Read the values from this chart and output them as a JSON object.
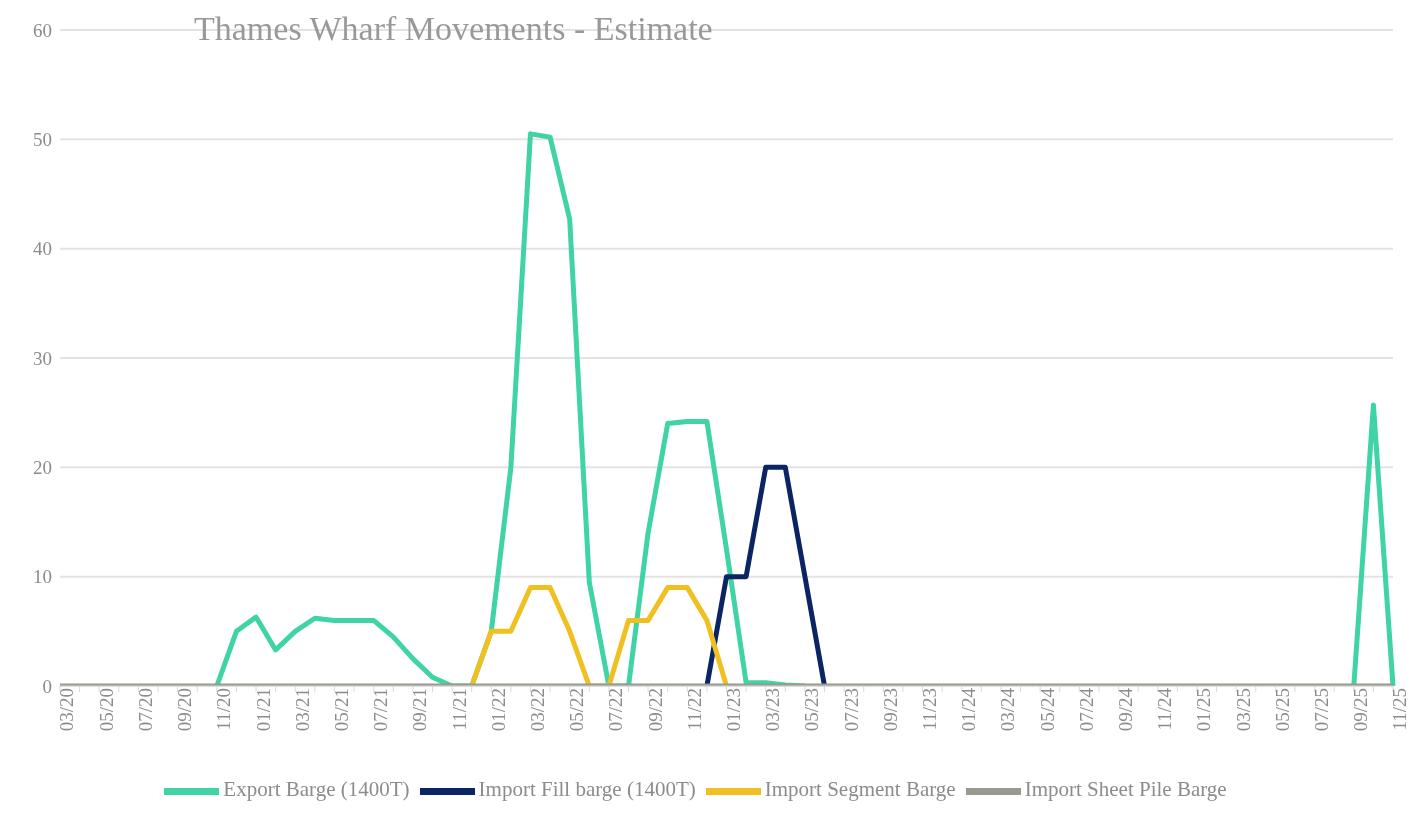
{
  "chart_data": {
    "type": "line",
    "title": "Thames Wharf Movements - Estimate",
    "categories": [
      "03/20",
      null,
      "05/20",
      null,
      "07/20",
      null,
      "09/20",
      null,
      "11/20",
      null,
      "01/21",
      null,
      "03/21",
      null,
      "05/21",
      null,
      "07/21",
      null,
      "09/21",
      null,
      "11/21",
      null,
      "01/22",
      null,
      "03/22",
      null,
      "05/22",
      null,
      "07/22",
      null,
      "09/22",
      null,
      "11/22",
      null,
      "01/23",
      null,
      "03/23",
      null,
      "05/23",
      null,
      "07/23",
      null,
      "09/23",
      null,
      "11/23",
      null,
      "01/24",
      null,
      "03/24",
      null,
      "05/24",
      null,
      "07/24",
      null,
      "09/24",
      null,
      "11/24",
      null,
      "01/25",
      null,
      "03/25",
      null,
      "05/25",
      null,
      "07/25",
      null,
      "09/25",
      null,
      "11/25"
    ],
    "series": [
      {
        "name": "Export Barge (1400T)",
        "color": "#3fd3a5",
        "values": [
          null,
          null,
          null,
          null,
          null,
          null,
          null,
          null,
          0,
          5,
          6.3,
          3.3,
          5,
          6.2,
          6,
          6,
          6,
          4.5,
          2.5,
          0.8,
          0,
          0,
          5,
          20,
          50.5,
          50.2,
          42.7,
          9.5,
          0,
          0,
          14,
          24,
          24.2,
          24.2,
          12.5,
          0.3,
          0.3,
          0.1,
          0,
          null,
          null,
          null,
          null,
          null,
          null,
          null,
          null,
          null,
          null,
          null,
          null,
          null,
          null,
          null,
          null,
          null,
          null,
          null,
          null,
          null,
          null,
          null,
          null,
          null,
          null,
          null,
          0,
          25.7,
          0
        ]
      },
      {
        "name": "Import Fill barge (1400T)",
        "color": "#0a2464",
        "values": [
          null,
          null,
          null,
          null,
          null,
          null,
          null,
          null,
          null,
          null,
          null,
          null,
          null,
          null,
          null,
          null,
          null,
          null,
          null,
          null,
          null,
          null,
          null,
          null,
          null,
          null,
          null,
          null,
          null,
          null,
          null,
          null,
          null,
          0,
          10,
          10,
          20,
          20,
          10,
          0,
          null,
          null,
          null,
          null,
          null,
          null,
          null,
          null,
          null,
          null,
          null,
          null,
          null,
          null,
          null,
          null,
          null,
          null,
          null,
          null,
          null,
          null,
          null,
          null,
          null,
          null,
          null,
          null,
          null
        ]
      },
      {
        "name": "Import Segment Barge",
        "color": "#f0c020",
        "values": [
          null,
          null,
          null,
          null,
          null,
          null,
          null,
          null,
          null,
          null,
          null,
          null,
          null,
          null,
          null,
          null,
          null,
          null,
          null,
          null,
          null,
          0,
          5,
          5,
          9,
          9,
          5,
          0,
          0,
          6,
          6,
          9,
          9,
          6,
          0,
          null,
          null,
          null,
          null,
          null,
          null,
          null,
          null,
          null,
          null,
          null,
          null,
          null,
          null,
          null,
          null,
          null,
          null,
          null,
          null,
          null,
          null,
          null,
          null,
          null,
          null,
          null,
          null,
          null,
          null,
          null,
          null,
          null,
          null
        ]
      },
      {
        "name": "Import Sheet Pile Barge",
        "color": "#979a8e",
        "values": [
          0,
          0,
          0,
          0,
          0,
          0,
          0,
          0,
          0,
          0,
          0,
          0,
          0,
          0,
          0,
          0,
          0,
          0,
          0,
          0,
          0,
          0,
          0,
          0,
          0,
          0,
          0,
          0,
          0,
          0,
          0,
          0,
          0,
          0,
          0,
          0,
          0,
          0,
          0,
          0,
          0,
          0,
          0,
          0,
          0,
          0,
          0,
          0,
          0,
          0,
          0,
          0,
          0,
          0,
          0,
          0,
          0,
          0,
          0,
          0,
          0,
          0,
          0,
          0,
          0,
          0,
          0,
          0,
          0
        ]
      }
    ],
    "ylim": [
      0,
      60
    ],
    "yticks": [
      0,
      10,
      20,
      30,
      40,
      50,
      60
    ],
    "grid": "y",
    "legend": "bottom",
    "marker": "none",
    "line_style": "solid"
  }
}
